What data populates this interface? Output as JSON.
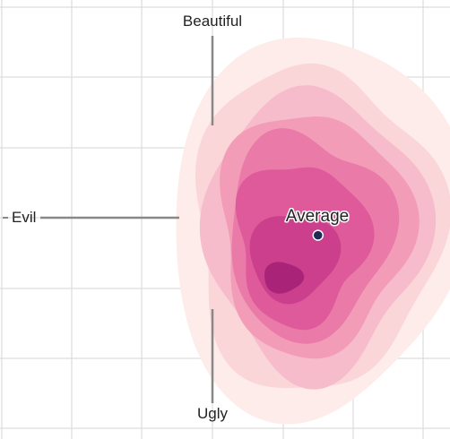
{
  "chart_data": {
    "type": "heatmap",
    "axes": {
      "x_negative_label": "Evil",
      "x_positive_label": "",
      "y_positive_label": "Beautiful",
      "y_negative_label": "Ugly",
      "xlim": [
        -3,
        3
      ],
      "ylim": [
        -3,
        3
      ],
      "grid": true
    },
    "average": {
      "label": "Average",
      "x": 1.5,
      "y": -0.25
    },
    "density_levels": [
      {
        "level": 1,
        "color": "#fdecea"
      },
      {
        "level": 2,
        "color": "#fbd6d9"
      },
      {
        "level": 3,
        "color": "#f7bccb"
      },
      {
        "level": 4,
        "color": "#f29cb8"
      },
      {
        "level": 5,
        "color": "#ea7aa8"
      },
      {
        "level": 6,
        "color": "#df5a9a"
      },
      {
        "level": 7,
        "color": "#cc3f8c"
      },
      {
        "level": 8,
        "color": "#a92479"
      }
    ],
    "colors": {
      "grid": "#dddddd",
      "axis": "#888888",
      "average_marker": "#1f2a55"
    }
  }
}
